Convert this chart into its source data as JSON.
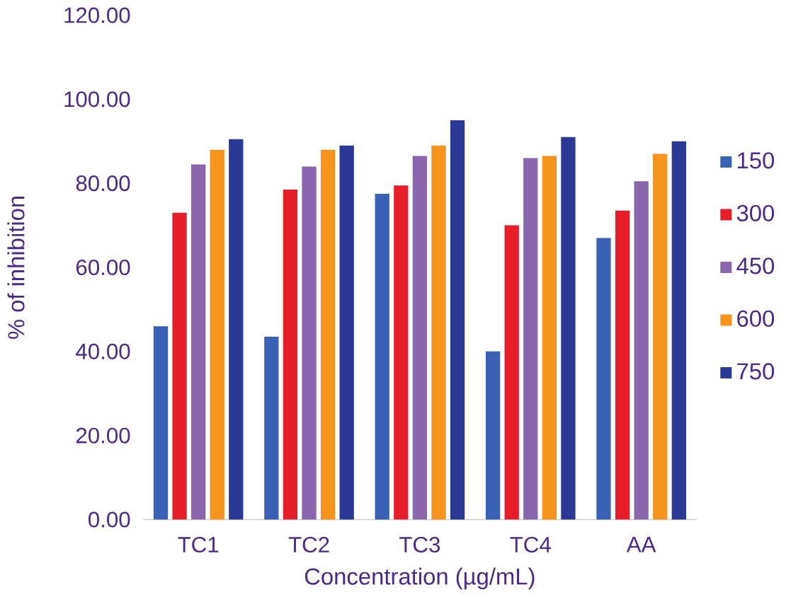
{
  "chart_data": {
    "type": "bar",
    "xlabel": "Concentration  (µg/mL)",
    "ylabel": "% of inhibition",
    "categories": [
      "TC1",
      "TC2",
      "TC3",
      "TC4",
      "AA"
    ],
    "series": [
      {
        "name": "150",
        "color": "#3a62b4",
        "values": [
          46,
          43.5,
          77.5,
          40,
          67
        ]
      },
      {
        "name": "300",
        "color": "#e61e2a",
        "values": [
          73,
          78.5,
          79.5,
          70,
          73.5
        ]
      },
      {
        "name": "450",
        "color": "#8a66ae",
        "values": [
          84.5,
          84,
          86.5,
          86,
          80.5
        ]
      },
      {
        "name": "600",
        "color": "#f7941d",
        "values": [
          88,
          88,
          89,
          86.5,
          87
        ]
      },
      {
        "name": "750",
        "color": "#2b3894",
        "values": [
          90.5,
          89,
          95,
          91,
          90
        ]
      }
    ],
    "ylim": [
      0,
      120
    ],
    "yticks": [
      {
        "value": 0,
        "label": "0.00"
      },
      {
        "value": 20,
        "label": "20.00"
      },
      {
        "value": 40,
        "label": "40.00"
      },
      {
        "value": 60,
        "label": "60.00"
      },
      {
        "value": 80,
        "label": "80.00"
      },
      {
        "value": 100,
        "label": "100.00"
      },
      {
        "value": 120,
        "label": "120.00"
      }
    ],
    "grid": false,
    "legend": "right"
  }
}
